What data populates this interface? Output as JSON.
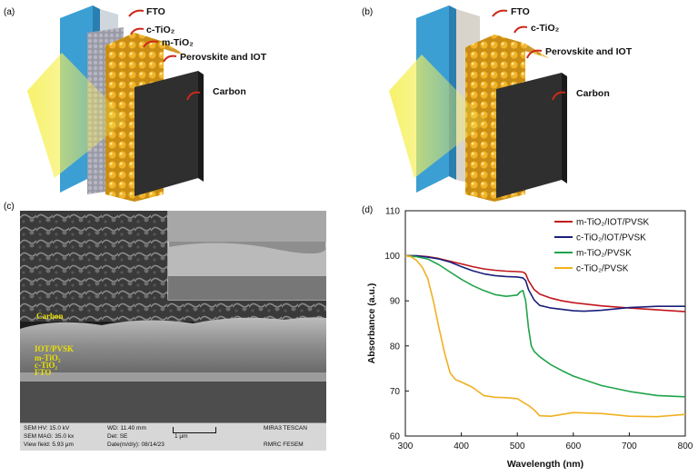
{
  "panels": {
    "a": {
      "label": "(a)",
      "callouts": [
        "FTO",
        "c-TiO₂",
        "m-TiO₂",
        "Perovskite and IOT",
        "Carbon"
      ]
    },
    "b": {
      "label": "(b)",
      "callouts": [
        "FTO",
        "c-TiO₂",
        "Perovskite and IOT",
        "Carbon"
      ]
    },
    "c": {
      "label": "(c)",
      "layers": [
        "Carbon",
        "IOT/PVSK",
        "m-TiO₂",
        "c-TiO₂",
        "FTO"
      ],
      "info": {
        "row1": [
          "SEM HV: 15.0 kV",
          "WD: 11.40 mm",
          "MIRA3 TESCAN"
        ],
        "row2": [
          "SEM MAG: 35.0 kx",
          "Det: SE",
          "1 μm"
        ],
        "row3": [
          "View field: 5.93 μm",
          "Date(m/d/y): 08/14/23",
          "RMRC  FESEM"
        ]
      }
    },
    "d": {
      "label": "(d)"
    }
  },
  "colors": {
    "fto": "#3b9fd4",
    "carbon": "#2f2f2f",
    "sphere": "#e8a51c",
    "light": "#f6f05a",
    "callout_arrow": "#cc2a1a"
  },
  "chart_data": {
    "type": "line",
    "xlabel": "Wavelength (nm)",
    "ylabel": "Absorbance (a.u.)",
    "xlim": [
      300,
      800
    ],
    "ylim": [
      60,
      110
    ],
    "xticks": [
      300,
      400,
      500,
      600,
      700,
      800
    ],
    "yticks": [
      60,
      70,
      80,
      90,
      100,
      110
    ],
    "legend_position": "top-right",
    "series": [
      {
        "name": "m-TiO₂/IOT/PVSK",
        "color": "#c0161c",
        "x": [
          300,
          320,
          340,
          360,
          380,
          400,
          420,
          440,
          460,
          480,
          500,
          510,
          515,
          520,
          530,
          540,
          560,
          580,
          600,
          650,
          700,
          750,
          800
        ],
        "y": [
          100,
          100,
          99.8,
          99.4,
          98.8,
          98.2,
          97.6,
          97.1,
          96.8,
          96.6,
          96.5,
          96.4,
          96.0,
          94.5,
          92.5,
          91.5,
          90.6,
          90.0,
          89.6,
          88.9,
          88.4,
          88.0,
          87.6
        ]
      },
      {
        "name": "c-TiO₂/IOT/PVSK",
        "color": "#1a1f7a",
        "x": [
          300,
          320,
          340,
          360,
          380,
          400,
          420,
          440,
          460,
          480,
          500,
          510,
          515,
          520,
          530,
          540,
          560,
          580,
          600,
          620,
          650,
          700,
          750,
          800
        ],
        "y": [
          100,
          100,
          99.7,
          99.3,
          98.6,
          97.6,
          96.7,
          96.0,
          95.6,
          95.4,
          95.3,
          95.1,
          94.5,
          92.5,
          90.2,
          89.0,
          88.4,
          88.1,
          87.8,
          87.7,
          87.9,
          88.5,
          88.8,
          88.8
        ]
      },
      {
        "name": "m-TiO₂/PVSK",
        "color": "#1fa34a",
        "x": [
          300,
          320,
          340,
          360,
          380,
          400,
          420,
          440,
          460,
          480,
          500,
          505,
          510,
          515,
          520,
          525,
          530,
          540,
          560,
          580,
          600,
          650,
          700,
          750,
          800
        ],
        "y": [
          100,
          99.8,
          99.3,
          98.0,
          96.4,
          94.8,
          93.4,
          92.3,
          91.4,
          91.0,
          91.3,
          92.0,
          92.3,
          90.0,
          84.0,
          80.0,
          78.8,
          77.6,
          75.8,
          74.5,
          73.3,
          71.2,
          69.9,
          69.0,
          68.7
        ]
      },
      {
        "name": "c-TiO₂/PVSK",
        "color": "#f0b020",
        "x": [
          300,
          310,
          320,
          330,
          340,
          350,
          360,
          370,
          380,
          390,
          400,
          420,
          440,
          460,
          480,
          500,
          510,
          520,
          530,
          540,
          560,
          600,
          650,
          700,
          750,
          800
        ],
        "y": [
          100,
          99.8,
          99.0,
          97.5,
          95.0,
          90.0,
          84.0,
          78.5,
          74.0,
          72.5,
          72.0,
          70.8,
          69.0,
          68.6,
          68.5,
          68.3,
          67.5,
          66.8,
          65.8,
          64.5,
          64.4,
          65.2,
          65.0,
          64.4,
          64.3,
          64.8
        ]
      }
    ]
  }
}
